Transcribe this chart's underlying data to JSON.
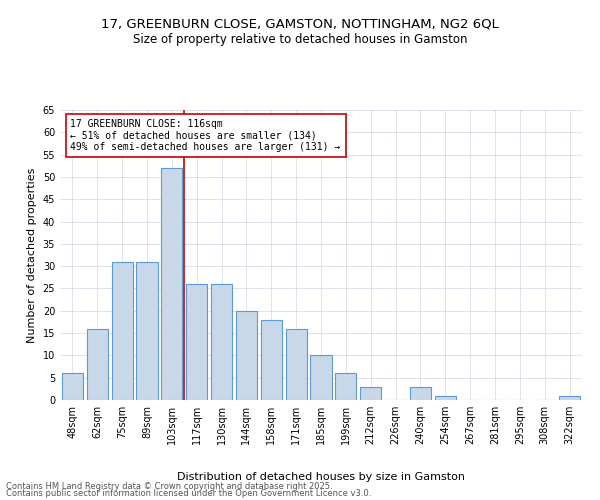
{
  "title": "17, GREENBURN CLOSE, GAMSTON, NOTTINGHAM, NG2 6QL",
  "subtitle": "Size of property relative to detached houses in Gamston",
  "xlabel": "Distribution of detached houses by size in Gamston",
  "ylabel": "Number of detached properties",
  "categories": [
    "48sqm",
    "62sqm",
    "75sqm",
    "89sqm",
    "103sqm",
    "117sqm",
    "130sqm",
    "144sqm",
    "158sqm",
    "171sqm",
    "185sqm",
    "199sqm",
    "212sqm",
    "226sqm",
    "240sqm",
    "254sqm",
    "267sqm",
    "281sqm",
    "295sqm",
    "308sqm",
    "322sqm"
  ],
  "values": [
    6,
    16,
    31,
    31,
    52,
    26,
    26,
    20,
    18,
    16,
    10,
    6,
    3,
    0,
    3,
    1,
    0,
    0,
    0,
    0,
    1
  ],
  "bar_color": "#c8d8e8",
  "bar_edge_color": "#5b9bd5",
  "highlight_index": 4,
  "highlight_line_color": "#cc0000",
  "annotation_line1": "17 GREENBURN CLOSE: 116sqm",
  "annotation_line2": "← 51% of detached houses are smaller (134)",
  "annotation_line3": "49% of semi-detached houses are larger (131) →",
  "annotation_box_color": "#ffffff",
  "annotation_box_edge": "#cc0000",
  "ylim": [
    0,
    65
  ],
  "yticks": [
    0,
    5,
    10,
    15,
    20,
    25,
    30,
    35,
    40,
    45,
    50,
    55,
    60,
    65
  ],
  "background_color": "#ffffff",
  "grid_color": "#d0d8e8",
  "footer_line1": "Contains HM Land Registry data © Crown copyright and database right 2025.",
  "footer_line2": "Contains public sector information licensed under the Open Government Licence v3.0.",
  "title_fontsize": 9.5,
  "subtitle_fontsize": 8.5,
  "axis_label_fontsize": 8,
  "tick_fontsize": 7,
  "annotation_fontsize": 7,
  "footer_fontsize": 6
}
